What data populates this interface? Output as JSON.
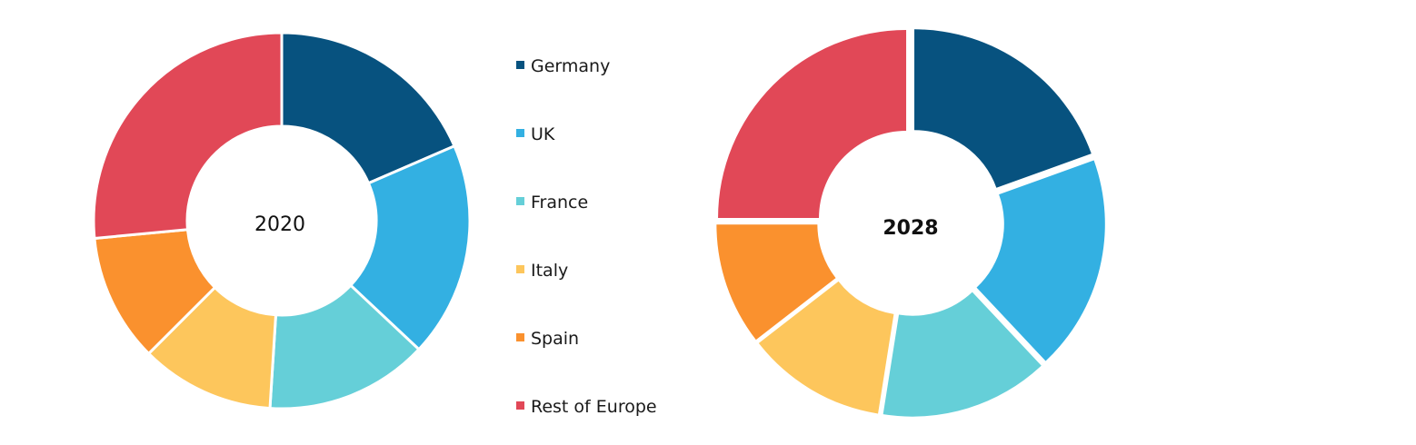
{
  "chart_data": [
    {
      "type": "pie",
      "center_label": "2020",
      "categories": [
        "Germany",
        "UK",
        "France",
        "Italy",
        "Spain",
        "Rest of Europe"
      ],
      "values": [
        18.5,
        18.5,
        14,
        11.5,
        11,
        26.5
      ],
      "legend_position": "center"
    },
    {
      "type": "pie",
      "center_label": "2028",
      "categories": [
        "Germany",
        "UK",
        "France",
        "Italy",
        "Spain",
        "Rest of Europe"
      ],
      "values": [
        19.5,
        18.5,
        14.5,
        12,
        10.5,
        25
      ],
      "legend_position": "center"
    }
  ],
  "legend": {
    "items": [
      {
        "label": "Germany",
        "color": "#07527f"
      },
      {
        "label": "UK",
        "color": "#33b0e2"
      },
      {
        "label": "France",
        "color": "#65cfd8"
      },
      {
        "label": "Italy",
        "color": "#fdc65c"
      },
      {
        "label": "Spain",
        "color": "#fa912e"
      },
      {
        "label": "Rest of Europe",
        "color": "#e14857"
      }
    ]
  }
}
